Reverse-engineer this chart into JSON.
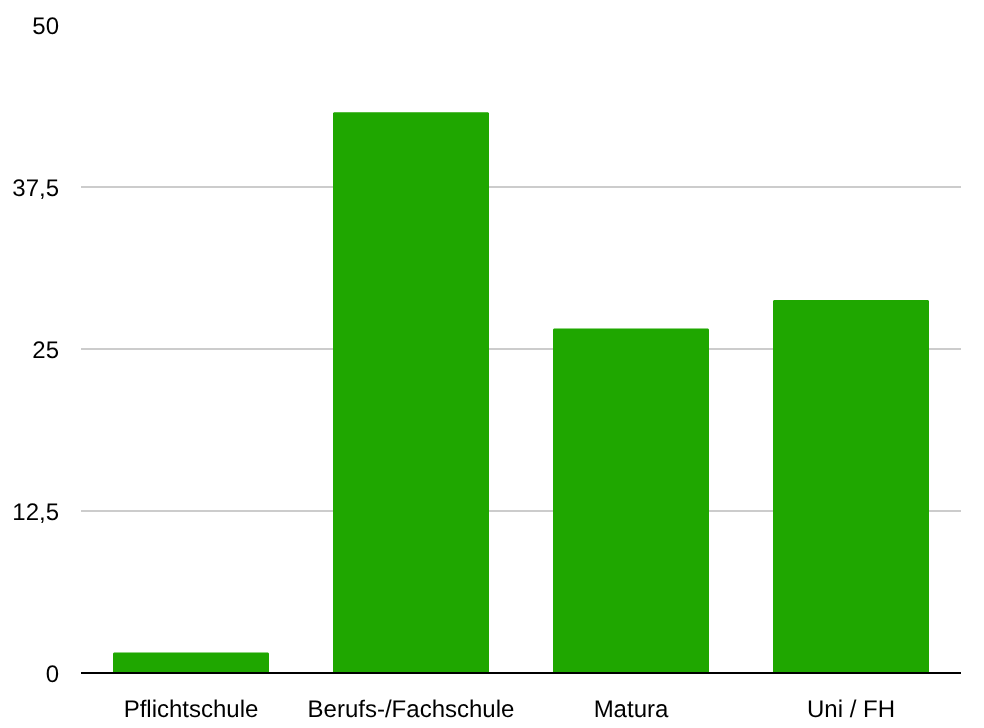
{
  "chart_data": {
    "type": "bar",
    "categories": [
      "Pflichtschule",
      "Berufs-/Fachschule",
      "Matura",
      "Uni / FH"
    ],
    "values": [
      1.5,
      43.2,
      26.5,
      28.7
    ],
    "color": "#1fa700",
    "ylim": [
      0,
      50
    ],
    "yticks": [
      0,
      {
        "value": 12.5,
        "label": "12,5"
      },
      25,
      {
        "value": 37.5,
        "label": "37,5"
      },
      50
    ],
    "grid": "y"
  }
}
